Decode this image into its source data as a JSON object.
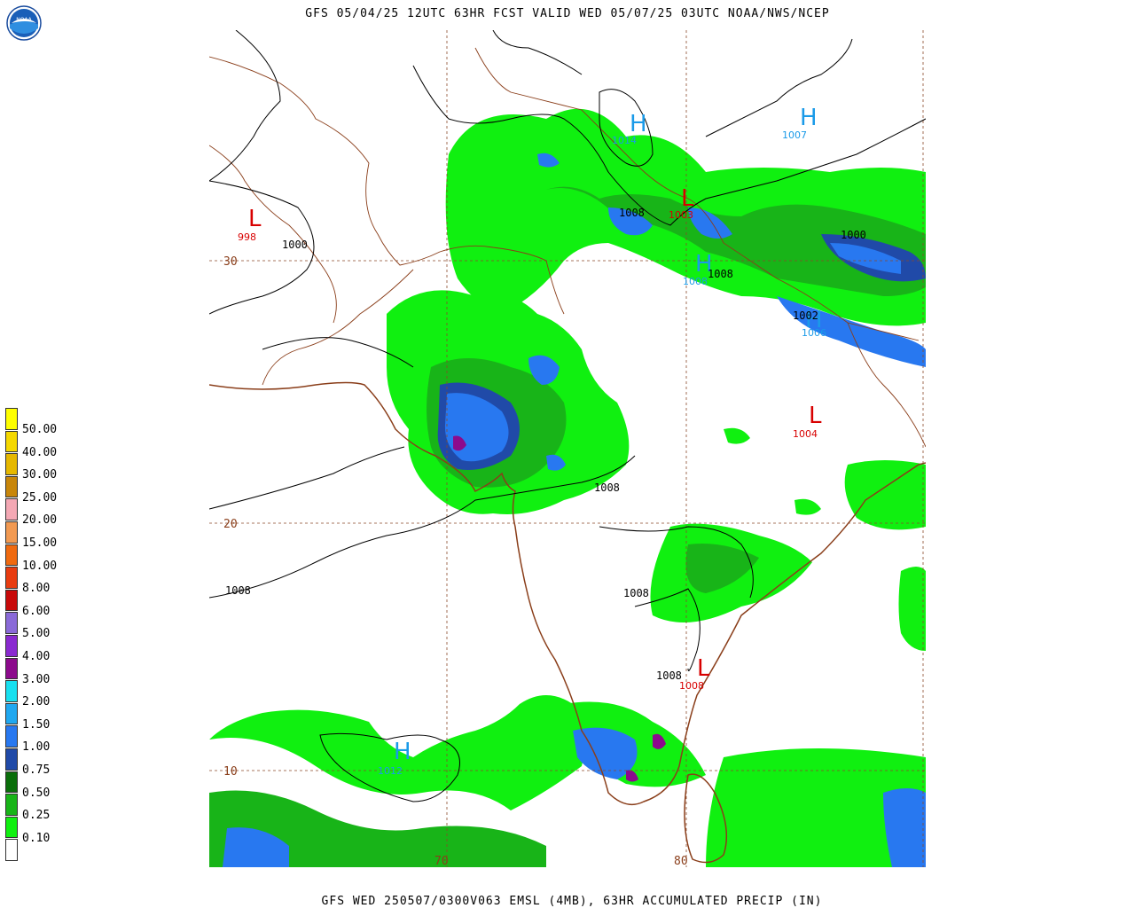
{
  "header": {
    "title": "GFS 05/04/25 12UTC 63HR FCST VALID WED 05/07/25 03UTC NOAA/NWS/NCEP"
  },
  "footer": {
    "caption": "GFS WED 250507/0300V063 EMSL (4MB), 63HR ACCUMULATED PRECIP (IN)"
  },
  "logo": {
    "text": "NOAA",
    "icon": "noaa-logo-icon"
  },
  "legend": {
    "items": [
      {
        "label": "50.00",
        "color": "#ffff00"
      },
      {
        "label": "40.00",
        "color": "#f5d800"
      },
      {
        "label": "30.00",
        "color": "#e6b800"
      },
      {
        "label": "25.00",
        "color": "#c8860a"
      },
      {
        "label": "20.00",
        "color": "#f4a8b4"
      },
      {
        "label": "15.00",
        "color": "#f29a52"
      },
      {
        "label": "10.00",
        "color": "#f06a10"
      },
      {
        "label": "8.00",
        "color": "#e83c10"
      },
      {
        "label": "6.00",
        "color": "#c80a0a"
      },
      {
        "label": "5.00",
        "color": "#8a6ad8"
      },
      {
        "label": "4.00",
        "color": "#8a2ad0"
      },
      {
        "label": "3.00",
        "color": "#8c0a8c"
      },
      {
        "label": "2.00",
        "color": "#18e0f0"
      },
      {
        "label": "1.50",
        "color": "#20a8f0"
      },
      {
        "label": "1.00",
        "color": "#2878f0"
      },
      {
        "label": "0.75",
        "color": "#204aa8"
      },
      {
        "label": "0.50",
        "color": "#0a6e0a"
      },
      {
        "label": "0.25",
        "color": "#18b418"
      },
      {
        "label": "0.10",
        "color": "#10f010"
      },
      {
        "label": "",
        "color": "#ffffff"
      }
    ]
  },
  "map": {
    "lat_labels": [
      "30",
      "20",
      "10"
    ],
    "lon_labels": [
      "70",
      "80"
    ],
    "pressure_centers": [
      {
        "type": "L",
        "value": "998",
        "color": "#d80000"
      },
      {
        "type": "H",
        "value": "1014",
        "color": "#1a9ae8"
      },
      {
        "type": "H",
        "value": "1007",
        "color": "#1a9ae8"
      },
      {
        "type": "L",
        "value": "1003",
        "color": "#d80000"
      },
      {
        "type": "H",
        "value": "1008",
        "color": "#1a9ae8"
      },
      {
        "type": "H",
        "value": "1006",
        "color": "#1a9ae8"
      },
      {
        "type": "L",
        "value": "1004",
        "color": "#d80000"
      },
      {
        "type": "L",
        "value": "1008",
        "color": "#d80000"
      },
      {
        "type": "H",
        "value": "1012",
        "color": "#1a9ae8"
      }
    ],
    "isobar_labels": [
      "1000",
      "1008",
      "1000",
      "1008",
      "1002",
      "1008",
      "1008",
      "1008",
      "1008"
    ]
  }
}
